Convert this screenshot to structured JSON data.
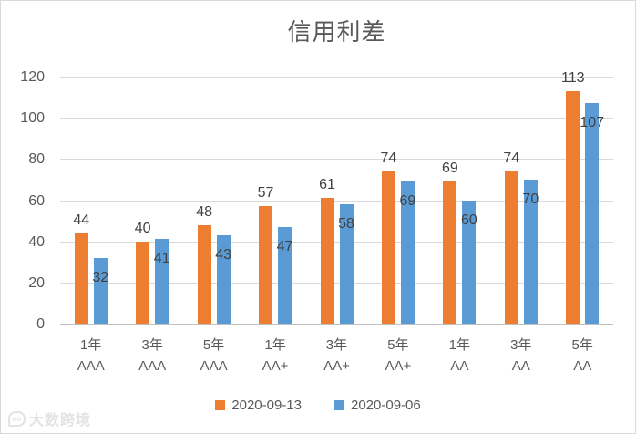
{
  "chart_data": {
    "type": "bar",
    "title": "信用利差",
    "categories": [
      "1年 AAA",
      "3年 AAA",
      "5年 AAA",
      "1年 AA+",
      "3年 AA+",
      "5年 AA+",
      "1年 AA",
      "3年 AA",
      "5年 AA"
    ],
    "series": [
      {
        "name": "2020-09-13",
        "color": "#ED7D31",
        "values": [
          44,
          40,
          48,
          57,
          61,
          74,
          69,
          74,
          113
        ]
      },
      {
        "name": "2020-09-06",
        "color": "#5B9BD5",
        "values": [
          32,
          41,
          43,
          47,
          58,
          69,
          60,
          70,
          107
        ]
      }
    ],
    "xlabel": "",
    "ylabel": "",
    "ylim": [
      0,
      120
    ],
    "yticks": [
      0,
      20,
      40,
      60,
      80,
      100,
      120
    ],
    "grid": true,
    "legend_position": "bottom",
    "value_labels": true,
    "colors": {
      "grid": "#d9d9d9",
      "axis_line": "#bfbfbf",
      "tick_text": "#595959",
      "data_label_text": "#404040",
      "title_text": "#595959",
      "background": "#ffffff"
    }
  },
  "watermark": {
    "logo": "10-bubble-icon",
    "text": "大数跨境"
  }
}
